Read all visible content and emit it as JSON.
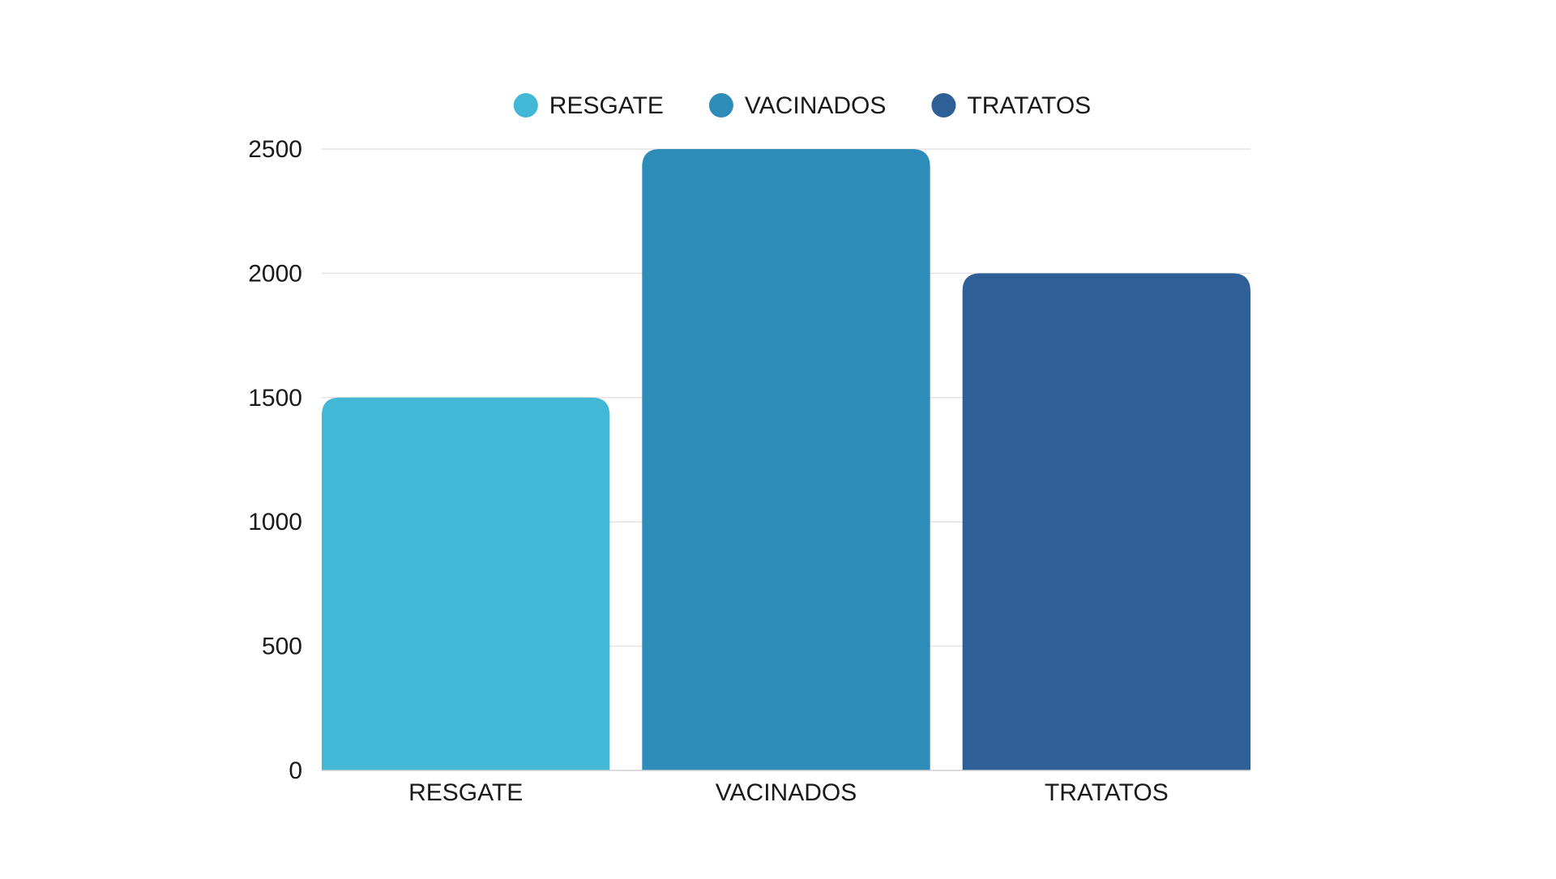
{
  "chart_data": {
    "type": "bar",
    "categories": [
      "RESGATE",
      "VACINADOS",
      "TRATATOS"
    ],
    "values": [
      1500,
      2500,
      2000
    ],
    "colors": [
      "#42b7d6",
      "#2e8cb9",
      "#2f5f97"
    ],
    "legend": {
      "placement": "top-center",
      "entries": [
        "RESGATE",
        "VACINADOS",
        "TRATATOS"
      ]
    },
    "yticks": [
      "0",
      "500",
      "1000",
      "1500",
      "2000",
      "2500"
    ],
    "ytick_values": [
      0,
      500,
      1000,
      1500,
      2000,
      2500
    ],
    "ylim": [
      0,
      2500
    ],
    "grid": true,
    "title": "",
    "xlabel": "",
    "ylabel": ""
  }
}
